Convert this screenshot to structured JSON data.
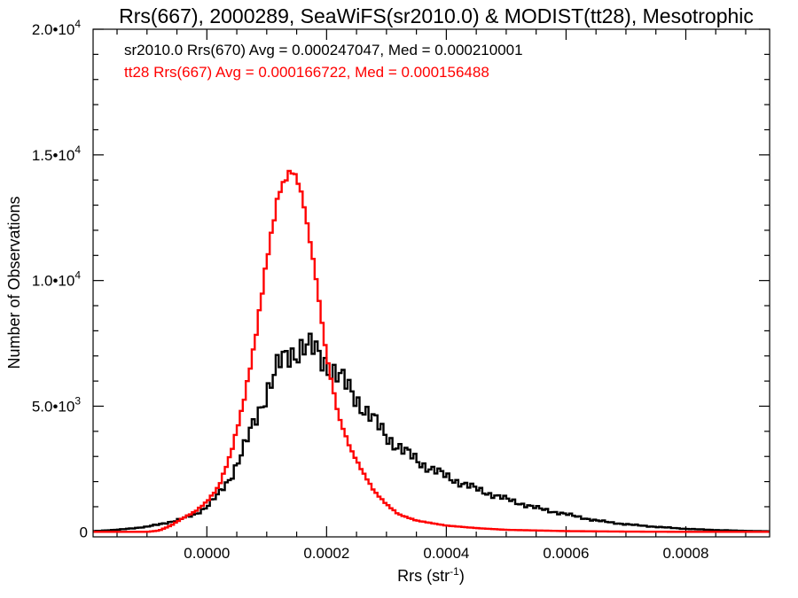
{
  "chart_data": {
    "type": "line",
    "title": "Rrs(667), 2000289, SeaWiFS(sr2010.0) & MODIST(tt28), Mesotrophic",
    "xlabel": "Rrs (str",
    "xlabel_sup": "-1",
    "xlabel_tail": ")",
    "ylabel": "Number of Observations",
    "xlim": [
      -0.00019,
      0.00094
    ],
    "ylim": [
      -200,
      20000
    ],
    "x_ticks": [
      {
        "value": 0.0,
        "label": "0.0000"
      },
      {
        "value": 0.0002,
        "label": "0.0002"
      },
      {
        "value": 0.0004,
        "label": "0.0004"
      },
      {
        "value": 0.0006,
        "label": "0.0006"
      },
      {
        "value": 0.0008,
        "label": "0.0008"
      }
    ],
    "y_ticks": [
      {
        "value": 0,
        "label": "0",
        "exp": ""
      },
      {
        "value": 5000,
        "label": "5.0•10",
        "exp": "3"
      },
      {
        "value": 10000,
        "label": "1.0•10",
        "exp": "4"
      },
      {
        "value": 15000,
        "label": "1.5•10",
        "exp": "4"
      },
      {
        "value": 20000,
        "label": "2.0•10",
        "exp": "4"
      }
    ],
    "grid": false,
    "series": [
      {
        "name": "sr2010.0 Rrs(670) Avg = 0.000247047, Med = 0.000210001",
        "color": "#000000",
        "x": [
          -0.00019,
          -0.00015,
          -0.0001,
          -5e-05,
          -2e-05,
          0.0,
          2e-05,
          4e-05,
          6e-05,
          8e-05,
          0.0001,
          0.00012,
          0.00014,
          0.00016,
          0.00018,
          0.0002,
          0.00022,
          0.00024,
          0.00026,
          0.00028,
          0.0003,
          0.00033,
          0.00036,
          0.0004,
          0.00045,
          0.0005,
          0.00055,
          0.0006,
          0.00065,
          0.0007,
          0.00075,
          0.0008,
          0.00085,
          0.0009,
          0.00094
        ],
        "y": [
          30,
          80,
          200,
          450,
          700,
          1000,
          1500,
          2200,
          3200,
          4400,
          5600,
          6600,
          7100,
          7400,
          7200,
          6700,
          6200,
          5600,
          5000,
          4400,
          3800,
          3200,
          2700,
          2200,
          1700,
          1300,
          950,
          700,
          450,
          300,
          200,
          120,
          70,
          40,
          20
        ]
      },
      {
        "name": "tt28 Rrs(667) Avg = 0.000166722, Med = 0.000156488",
        "color": "#ff0000",
        "x": [
          -0.00019,
          -0.0001,
          -8e-05,
          -6e-05,
          -4e-05,
          -2e-05,
          0.0,
          2e-05,
          4e-05,
          6e-05,
          8e-05,
          0.0001,
          0.00012,
          0.00014,
          0.00015,
          0.00016,
          0.00018,
          0.0002,
          0.00022,
          0.00024,
          0.00026,
          0.00028,
          0.0003,
          0.00032,
          0.00035,
          0.0004,
          0.00045,
          0.0005,
          0.0006,
          0.0007,
          0.0008,
          0.00094
        ],
        "y": [
          0,
          0,
          50,
          250,
          550,
          800,
          1200,
          1800,
          3100,
          5000,
          7500,
          10800,
          13500,
          14400,
          14100,
          13300,
          10500,
          7000,
          4600,
          3300,
          2400,
          1600,
          1100,
          700,
          450,
          250,
          150,
          80,
          30,
          10,
          0,
          0
        ]
      }
    ]
  }
}
